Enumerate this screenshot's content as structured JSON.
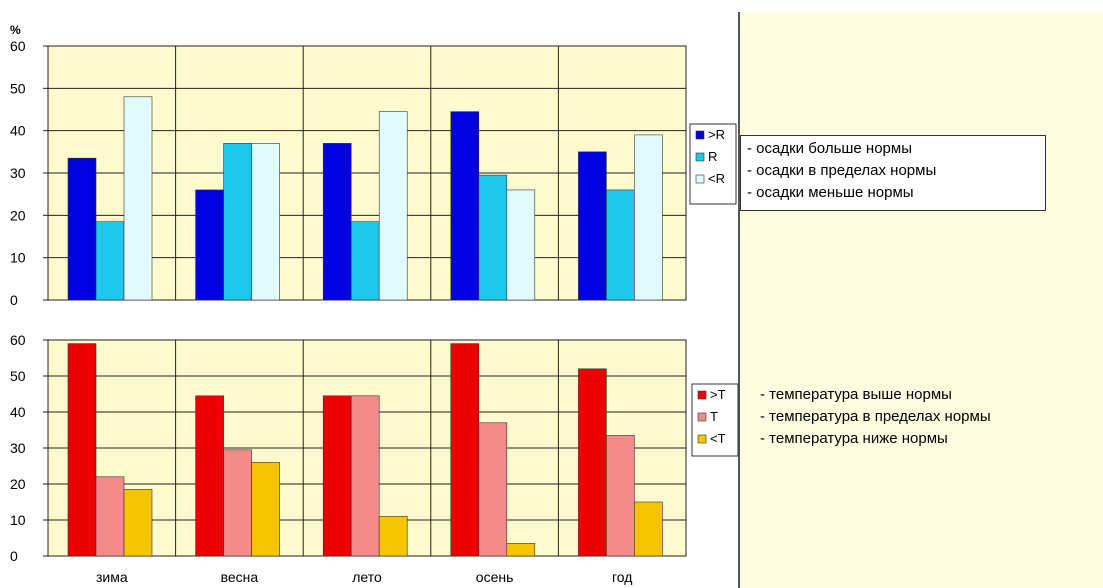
{
  "colors": {
    "plot_bg": "#fffbcf",
    "grid": "#222222",
    "precip_above": "#0000e0",
    "precip_within": "#1ec8ea",
    "precip_below": "#e0fbff",
    "temp_above": "#ee0000",
    "temp_within": "#f58a8a",
    "temp_below": "#f6c400"
  },
  "chart_data": [
    {
      "type": "bar",
      "ylabel": "%",
      "ylim": [
        0,
        60
      ],
      "yticks": [
        0,
        10,
        20,
        30,
        40,
        50,
        60
      ],
      "categories": [
        "зима",
        "весна",
        "лето",
        "осень",
        "год"
      ],
      "series": [
        {
          "name": ">R",
          "values": [
            33.5,
            26,
            37,
            44.5,
            35
          ],
          "color": "#0000e0"
        },
        {
          "name": "R",
          "values": [
            18.5,
            37,
            18.5,
            29.5,
            26
          ],
          "color": "#1ec8ea"
        },
        {
          "name": "<R",
          "values": [
            48,
            37,
            44.5,
            26,
            39
          ],
          "color": "#e0fbff"
        }
      ],
      "legend_descriptions": [
        "- осадки больше нормы",
        "- осадки в пределах нормы",
        "- осадки меньше нормы"
      ],
      "legend": "right",
      "grid": true
    },
    {
      "type": "bar",
      "ylim": [
        0,
        60
      ],
      "yticks": [
        0,
        10,
        20,
        30,
        40,
        50,
        60
      ],
      "categories": [
        "зима",
        "весна",
        "лето",
        "осень",
        "год"
      ],
      "series": [
        {
          "name": ">T",
          "values": [
            59,
            44.5,
            44.5,
            59,
            52
          ],
          "color": "#ee0000"
        },
        {
          "name": "T",
          "values": [
            22,
            29.5,
            44.5,
            37,
            33.5
          ],
          "color": "#f58a8a"
        },
        {
          "name": "<T",
          "values": [
            18.5,
            26,
            11,
            3.5,
            15
          ],
          "color": "#f6c400"
        }
      ],
      "legend_descriptions": [
        "- температура выше нормы",
        "- температура в пределах нормы",
        "- температура ниже нормы"
      ],
      "legend": "right",
      "grid": true
    }
  ]
}
